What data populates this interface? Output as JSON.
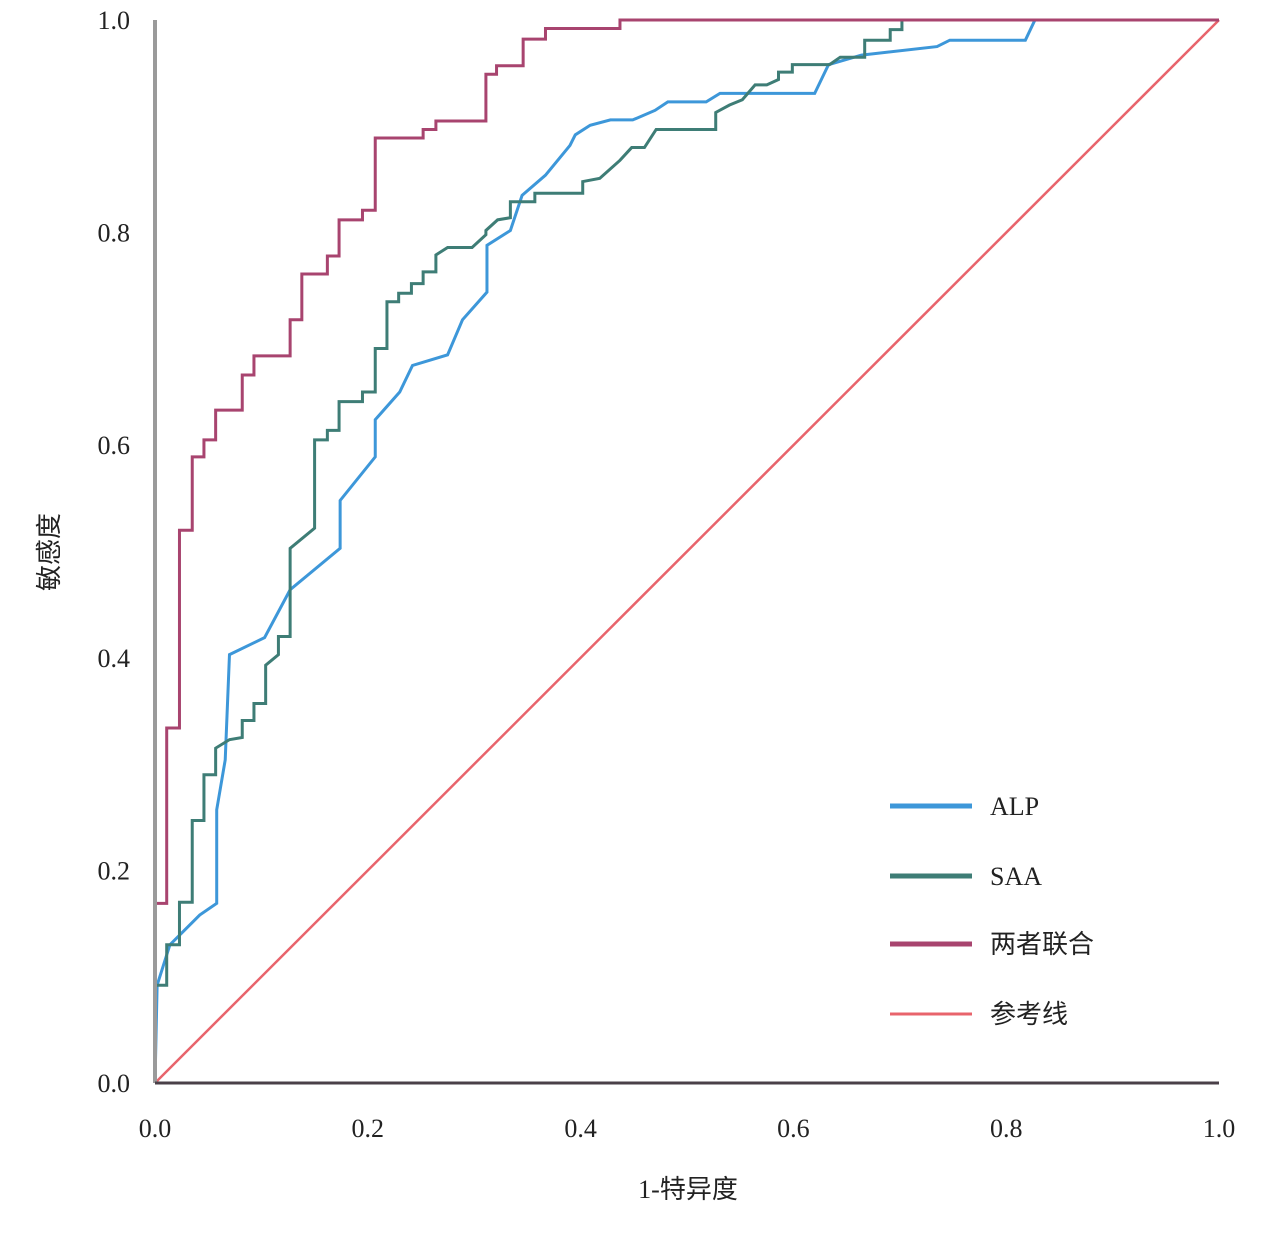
{
  "chart_data": {
    "type": "line",
    "title": "",
    "xlabel": "1-特异度",
    "ylabel": "敏感度",
    "xlim": [
      0,
      1
    ],
    "ylim": [
      0,
      1
    ],
    "xticks": [
      "0.0",
      "0.2",
      "0.4",
      "0.6",
      "0.8",
      "1.0"
    ],
    "yticks": [
      "0.0",
      "0.2",
      "0.4",
      "0.6",
      "0.8",
      "1.0"
    ],
    "grid": false,
    "legend_position": "bottom-right",
    "series": [
      {
        "name": "ALP",
        "color": "#3d97d9",
        "points": [
          [
            0,
            0
          ],
          [
            0.002,
            0.092
          ],
          [
            0.014,
            0.13
          ],
          [
            0.042,
            0.158
          ],
          [
            0.058,
            0.169
          ],
          [
            0.058,
            0.257
          ],
          [
            0.066,
            0.304
          ],
          [
            0.07,
            0.403
          ],
          [
            0.103,
            0.419
          ],
          [
            0.127,
            0.464
          ],
          [
            0.174,
            0.503
          ],
          [
            0.174,
            0.548
          ],
          [
            0.207,
            0.589
          ],
          [
            0.207,
            0.624
          ],
          [
            0.23,
            0.65
          ],
          [
            0.242,
            0.675
          ],
          [
            0.275,
            0.685
          ],
          [
            0.289,
            0.718
          ],
          [
            0.312,
            0.744
          ],
          [
            0.312,
            0.788
          ],
          [
            0.334,
            0.802
          ],
          [
            0.345,
            0.835
          ],
          [
            0.367,
            0.854
          ],
          [
            0.39,
            0.882
          ],
          [
            0.395,
            0.892
          ],
          [
            0.409,
            0.901
          ],
          [
            0.428,
            0.906
          ],
          [
            0.449,
            0.906
          ],
          [
            0.47,
            0.915
          ],
          [
            0.482,
            0.923
          ],
          [
            0.518,
            0.923
          ],
          [
            0.531,
            0.931
          ],
          [
            0.564,
            0.931
          ],
          [
            0.62,
            0.931
          ],
          [
            0.633,
            0.958
          ],
          [
            0.664,
            0.967
          ],
          [
            0.735,
            0.975
          ],
          [
            0.747,
            0.981
          ],
          [
            0.818,
            0.981
          ],
          [
            0.827,
            1.0
          ],
          [
            1.0,
            1.0
          ]
        ]
      },
      {
        "name": "SAA",
        "color": "#3e7d76",
        "points": [
          [
            0,
            0
          ],
          [
            0,
            0.092
          ],
          [
            0.011,
            0.092
          ],
          [
            0.011,
            0.13
          ],
          [
            0.023,
            0.13
          ],
          [
            0.023,
            0.17
          ],
          [
            0.035,
            0.17
          ],
          [
            0.035,
            0.247
          ],
          [
            0.046,
            0.247
          ],
          [
            0.046,
            0.29
          ],
          [
            0.057,
            0.29
          ],
          [
            0.057,
            0.315
          ],
          [
            0.07,
            0.323
          ],
          [
            0.082,
            0.325
          ],
          [
            0.082,
            0.341
          ],
          [
            0.093,
            0.341
          ],
          [
            0.093,
            0.357
          ],
          [
            0.104,
            0.357
          ],
          [
            0.104,
            0.393
          ],
          [
            0.116,
            0.403
          ],
          [
            0.116,
            0.42
          ],
          [
            0.127,
            0.42
          ],
          [
            0.127,
            0.503
          ],
          [
            0.15,
            0.522
          ],
          [
            0.15,
            0.605
          ],
          [
            0.162,
            0.605
          ],
          [
            0.162,
            0.614
          ],
          [
            0.173,
            0.614
          ],
          [
            0.173,
            0.641
          ],
          [
            0.195,
            0.641
          ],
          [
            0.195,
            0.65
          ],
          [
            0.207,
            0.65
          ],
          [
            0.207,
            0.691
          ],
          [
            0.218,
            0.691
          ],
          [
            0.218,
            0.735
          ],
          [
            0.229,
            0.735
          ],
          [
            0.229,
            0.743
          ],
          [
            0.241,
            0.743
          ],
          [
            0.241,
            0.752
          ],
          [
            0.252,
            0.752
          ],
          [
            0.252,
            0.763
          ],
          [
            0.264,
            0.763
          ],
          [
            0.264,
            0.779
          ],
          [
            0.275,
            0.786
          ],
          [
            0.298,
            0.786
          ],
          [
            0.311,
            0.798
          ],
          [
            0.311,
            0.802
          ],
          [
            0.322,
            0.812
          ],
          [
            0.334,
            0.814
          ],
          [
            0.334,
            0.829
          ],
          [
            0.357,
            0.829
          ],
          [
            0.357,
            0.837
          ],
          [
            0.402,
            0.837
          ],
          [
            0.402,
            0.848
          ],
          [
            0.418,
            0.851
          ],
          [
            0.437,
            0.868
          ],
          [
            0.448,
            0.88
          ],
          [
            0.46,
            0.88
          ],
          [
            0.471,
            0.897
          ],
          [
            0.527,
            0.897
          ],
          [
            0.527,
            0.913
          ],
          [
            0.54,
            0.92
          ],
          [
            0.552,
            0.925
          ],
          [
            0.564,
            0.939
          ],
          [
            0.575,
            0.939
          ],
          [
            0.586,
            0.944
          ],
          [
            0.586,
            0.951
          ],
          [
            0.599,
            0.951
          ],
          [
            0.599,
            0.958
          ],
          [
            0.634,
            0.958
          ],
          [
            0.644,
            0.965
          ],
          [
            0.667,
            0.965
          ],
          [
            0.667,
            0.981
          ],
          [
            0.691,
            0.981
          ],
          [
            0.691,
            0.991
          ],
          [
            0.702,
            0.991
          ],
          [
            0.702,
            1.0
          ],
          [
            1.0,
            1.0
          ]
        ]
      },
      {
        "name": "两者联合",
        "color": "#a8446f",
        "points": [
          [
            0,
            0
          ],
          [
            0,
            0.169
          ],
          [
            0.011,
            0.169
          ],
          [
            0.011,
            0.334
          ],
          [
            0.023,
            0.334
          ],
          [
            0.023,
            0.52
          ],
          [
            0.035,
            0.52
          ],
          [
            0.035,
            0.589
          ],
          [
            0.046,
            0.589
          ],
          [
            0.046,
            0.605
          ],
          [
            0.057,
            0.605
          ],
          [
            0.057,
            0.633
          ],
          [
            0.082,
            0.633
          ],
          [
            0.082,
            0.666
          ],
          [
            0.093,
            0.666
          ],
          [
            0.093,
            0.684
          ],
          [
            0.127,
            0.684
          ],
          [
            0.127,
            0.718
          ],
          [
            0.138,
            0.718
          ],
          [
            0.138,
            0.761
          ],
          [
            0.162,
            0.761
          ],
          [
            0.162,
            0.778
          ],
          [
            0.173,
            0.778
          ],
          [
            0.173,
            0.812
          ],
          [
            0.195,
            0.812
          ],
          [
            0.195,
            0.821
          ],
          [
            0.207,
            0.821
          ],
          [
            0.207,
            0.889
          ],
          [
            0.252,
            0.889
          ],
          [
            0.252,
            0.897
          ],
          [
            0.264,
            0.897
          ],
          [
            0.264,
            0.905
          ],
          [
            0.311,
            0.905
          ],
          [
            0.311,
            0.949
          ],
          [
            0.321,
            0.949
          ],
          [
            0.321,
            0.957
          ],
          [
            0.346,
            0.957
          ],
          [
            0.346,
            0.982
          ],
          [
            0.367,
            0.982
          ],
          [
            0.367,
            0.992
          ],
          [
            0.437,
            0.992
          ],
          [
            0.437,
            1.0
          ],
          [
            1.0,
            1.0
          ]
        ]
      },
      {
        "name": "参考线",
        "color": "#e8646c",
        "points": [
          [
            0,
            0
          ],
          [
            1,
            1
          ]
        ]
      }
    ]
  }
}
